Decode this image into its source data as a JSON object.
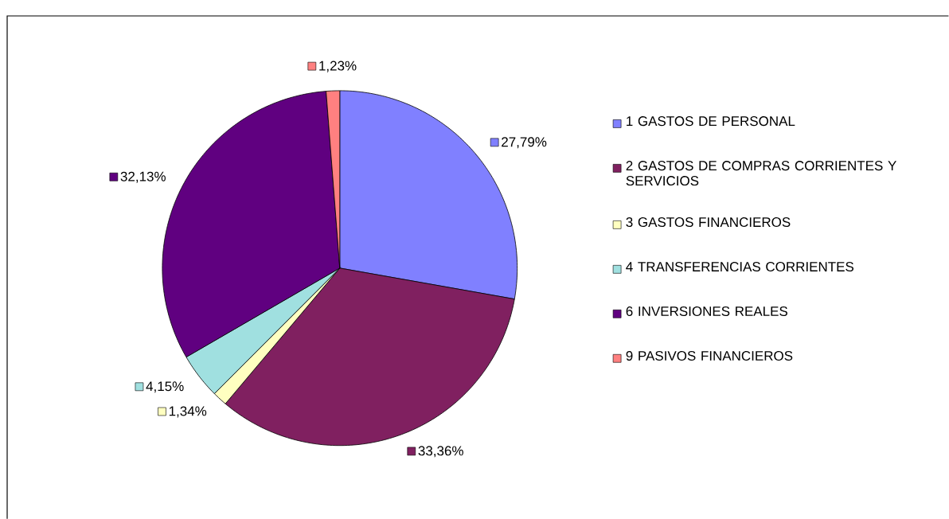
{
  "chart_data": {
    "type": "pie",
    "categories": [
      "1 GASTOS DE PERSONAL",
      "2 GASTOS DE COMPRAS CORRIENTES Y SERVICIOS",
      "3 GASTOS FINANCIEROS",
      "4 TRANSFERENCIAS CORRIENTES",
      "6 INVERSIONES REALES",
      "9 PASIVOS FINANCIEROS"
    ],
    "values": [
      27.79,
      33.36,
      1.34,
      4.15,
      32.13,
      1.23
    ],
    "value_labels": [
      "27,79%",
      "33,36%",
      "1,34%",
      "4,15%",
      "32,13%",
      "1,23%"
    ],
    "colors": [
      "#8080ff",
      "#802060",
      "#ffffc0",
      "#a0e0e0",
      "#600080",
      "#ff8080"
    ],
    "legend": "right"
  }
}
